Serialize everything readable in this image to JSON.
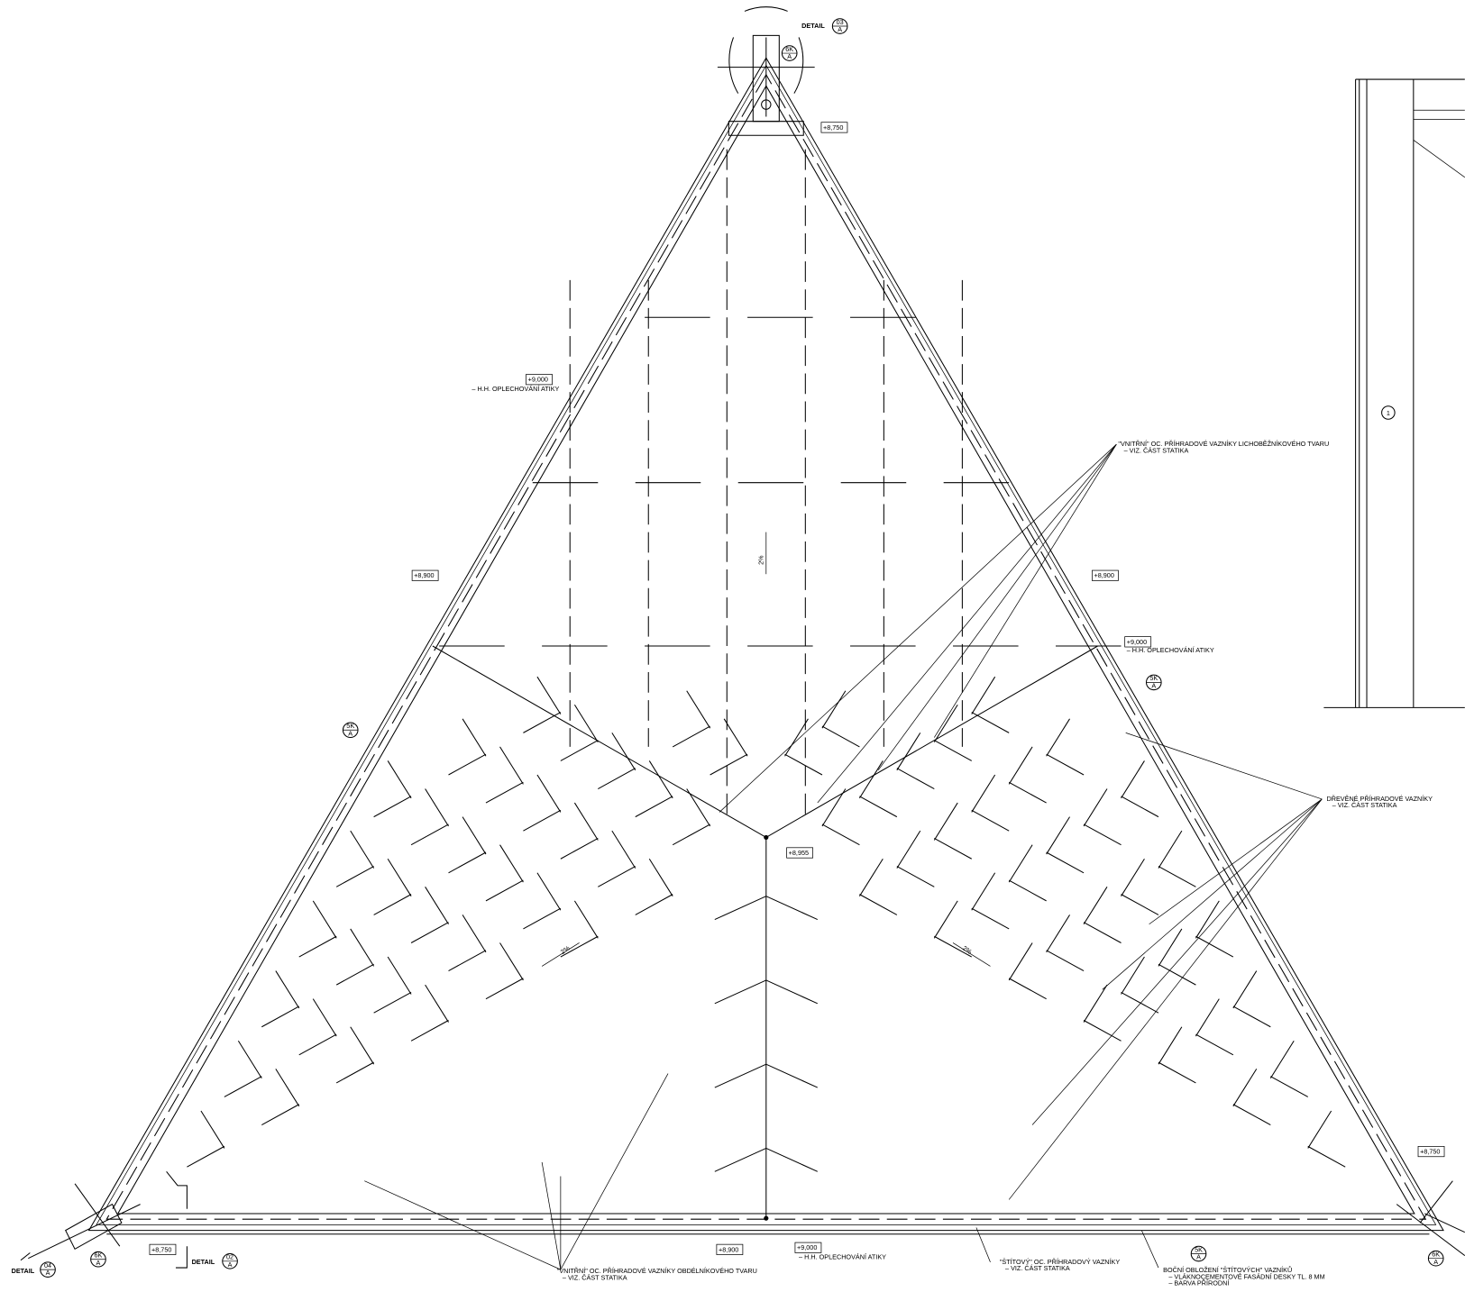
{
  "details": [
    {
      "label": "DETAIL",
      "number": "03",
      "sheet": "A"
    },
    {
      "label": "DETAIL",
      "number": "04",
      "sheet": "A"
    },
    {
      "label": "DETAIL",
      "number": "02",
      "sheet": "A"
    }
  ],
  "elevations": [
    "+8,750",
    "+9,000",
    "+8,900",
    "+8,900",
    "+9,000",
    "+8,955",
    "+8,750",
    "+8,750",
    "+8,900",
    "+9,000"
  ],
  "elevation_notes": [
    "– H.H. OPLECHOVÁNÍ ATIKY",
    "– H.H. OPLECHOVÁNÍ ATIKY",
    "– H.H. OPLECHOVÁNÍ ATIKY"
  ],
  "section_markers": [
    {
      "top": "6K",
      "bottom": "A"
    },
    {
      "top": "5K",
      "bottom": "A"
    },
    {
      "top": "5K",
      "bottom": "A"
    },
    {
      "top": "5K",
      "bottom": "A"
    },
    {
      "top": "6K",
      "bottom": "A"
    },
    {
      "top": "6K",
      "bottom": "A"
    }
  ],
  "slopes": [
    "2%",
    "2%",
    "2%"
  ],
  "notes": [
    {
      "lines": [
        "\"VNITŘNÍ\" OC. PŘÍHRADOVÉ VAZNÍKY LICHOBĚŽNÍKOVÉHO TVARU",
        "– VIZ. ČÁST STATIKA"
      ]
    },
    {
      "lines": [
        "DŘEVĚNÉ PŘÍHRADOVÉ VAZNÍKY",
        "– VIZ. ČÁST STATIKA"
      ]
    },
    {
      "lines": [
        "\"VNITŘNÍ\" OC. PŘÍHRADOVÉ VAZNÍKY OBDÉLNÍKOVÉHO TVARU",
        "– VIZ. ČÁST STATIKA"
      ]
    },
    {
      "lines": [
        "\"ŠTÍTOVÝ\" OC. PŘÍHRADOVÝ VAZNÍKY",
        "– VIZ. ČÁST STATIKA"
      ]
    },
    {
      "lines": [
        "BOČNÍ OBLOŽENÍ \"ŠTÍTOVÝCH\" VAZNÍKŮ",
        "– VLÁKNOCEMENTOVÉ FASÁDNÍ DESKY TL. 8 MM",
        "– BARVA PŘÍRODNÍ"
      ]
    }
  ],
  "grid_label": "1"
}
